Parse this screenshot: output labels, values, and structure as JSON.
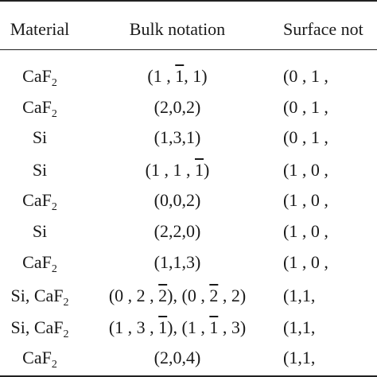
{
  "table": {
    "headers": [
      "Material",
      "Bulk notation",
      "Surface not"
    ],
    "rows": [
      {
        "material": [
          {
            "t": "CaF"
          },
          {
            "t": "2",
            "sub": true
          }
        ],
        "bulk": [
          {
            "t": "(1 , "
          },
          {
            "t": "1",
            "bar": true
          },
          {
            "t": ", 1)"
          }
        ],
        "surface": "(0 , 1 ,"
      },
      {
        "material": [
          {
            "t": "CaF"
          },
          {
            "t": "2",
            "sub": true
          }
        ],
        "bulk": [
          {
            "t": "(2,0,2)"
          }
        ],
        "surface": "(0 , 1 ,"
      },
      {
        "material": [
          {
            "t": "Si"
          }
        ],
        "bulk": [
          {
            "t": "(1,3,1)"
          }
        ],
        "surface": "(0 , 1 ,"
      },
      {
        "material": [
          {
            "t": "Si"
          }
        ],
        "bulk": [
          {
            "t": "(1 , 1 , "
          },
          {
            "t": "1",
            "bar": true
          },
          {
            "t": ")"
          }
        ],
        "surface": "(1 , 0 ,"
      },
      {
        "material": [
          {
            "t": "CaF"
          },
          {
            "t": "2",
            "sub": true
          }
        ],
        "bulk": [
          {
            "t": "(0,0,2)"
          }
        ],
        "surface": "(1 , 0 ,"
      },
      {
        "material": [
          {
            "t": "Si"
          }
        ],
        "bulk": [
          {
            "t": "(2,2,0)"
          }
        ],
        "surface": "(1 , 0 ,"
      },
      {
        "material": [
          {
            "t": "CaF"
          },
          {
            "t": "2",
            "sub": true
          }
        ],
        "bulk": [
          {
            "t": "(1,1,3)"
          }
        ],
        "surface": "(1 , 0 ,"
      },
      {
        "material": [
          {
            "t": "Si, CaF"
          },
          {
            "t": "2",
            "sub": true
          }
        ],
        "bulk": [
          {
            "t": "(0 , 2 , "
          },
          {
            "t": "2",
            "bar": true
          },
          {
            "t": "), (0 , "
          },
          {
            "t": "2",
            "bar": true
          },
          {
            "t": " , 2)"
          }
        ],
        "surface": "(1,1,"
      },
      {
        "material": [
          {
            "t": "Si, CaF"
          },
          {
            "t": "2",
            "sub": true
          }
        ],
        "bulk": [
          {
            "t": "(1 , 3 , "
          },
          {
            "t": "1",
            "bar": true
          },
          {
            "t": "), (1 , "
          },
          {
            "t": "1",
            "bar": true
          },
          {
            "t": " , 3)"
          }
        ],
        "surface": "(1,1,"
      },
      {
        "material": [
          {
            "t": "CaF"
          },
          {
            "t": "2",
            "sub": true
          }
        ],
        "bulk": [
          {
            "t": "(2,0,4)"
          }
        ],
        "surface": "(1,1,"
      }
    ]
  }
}
